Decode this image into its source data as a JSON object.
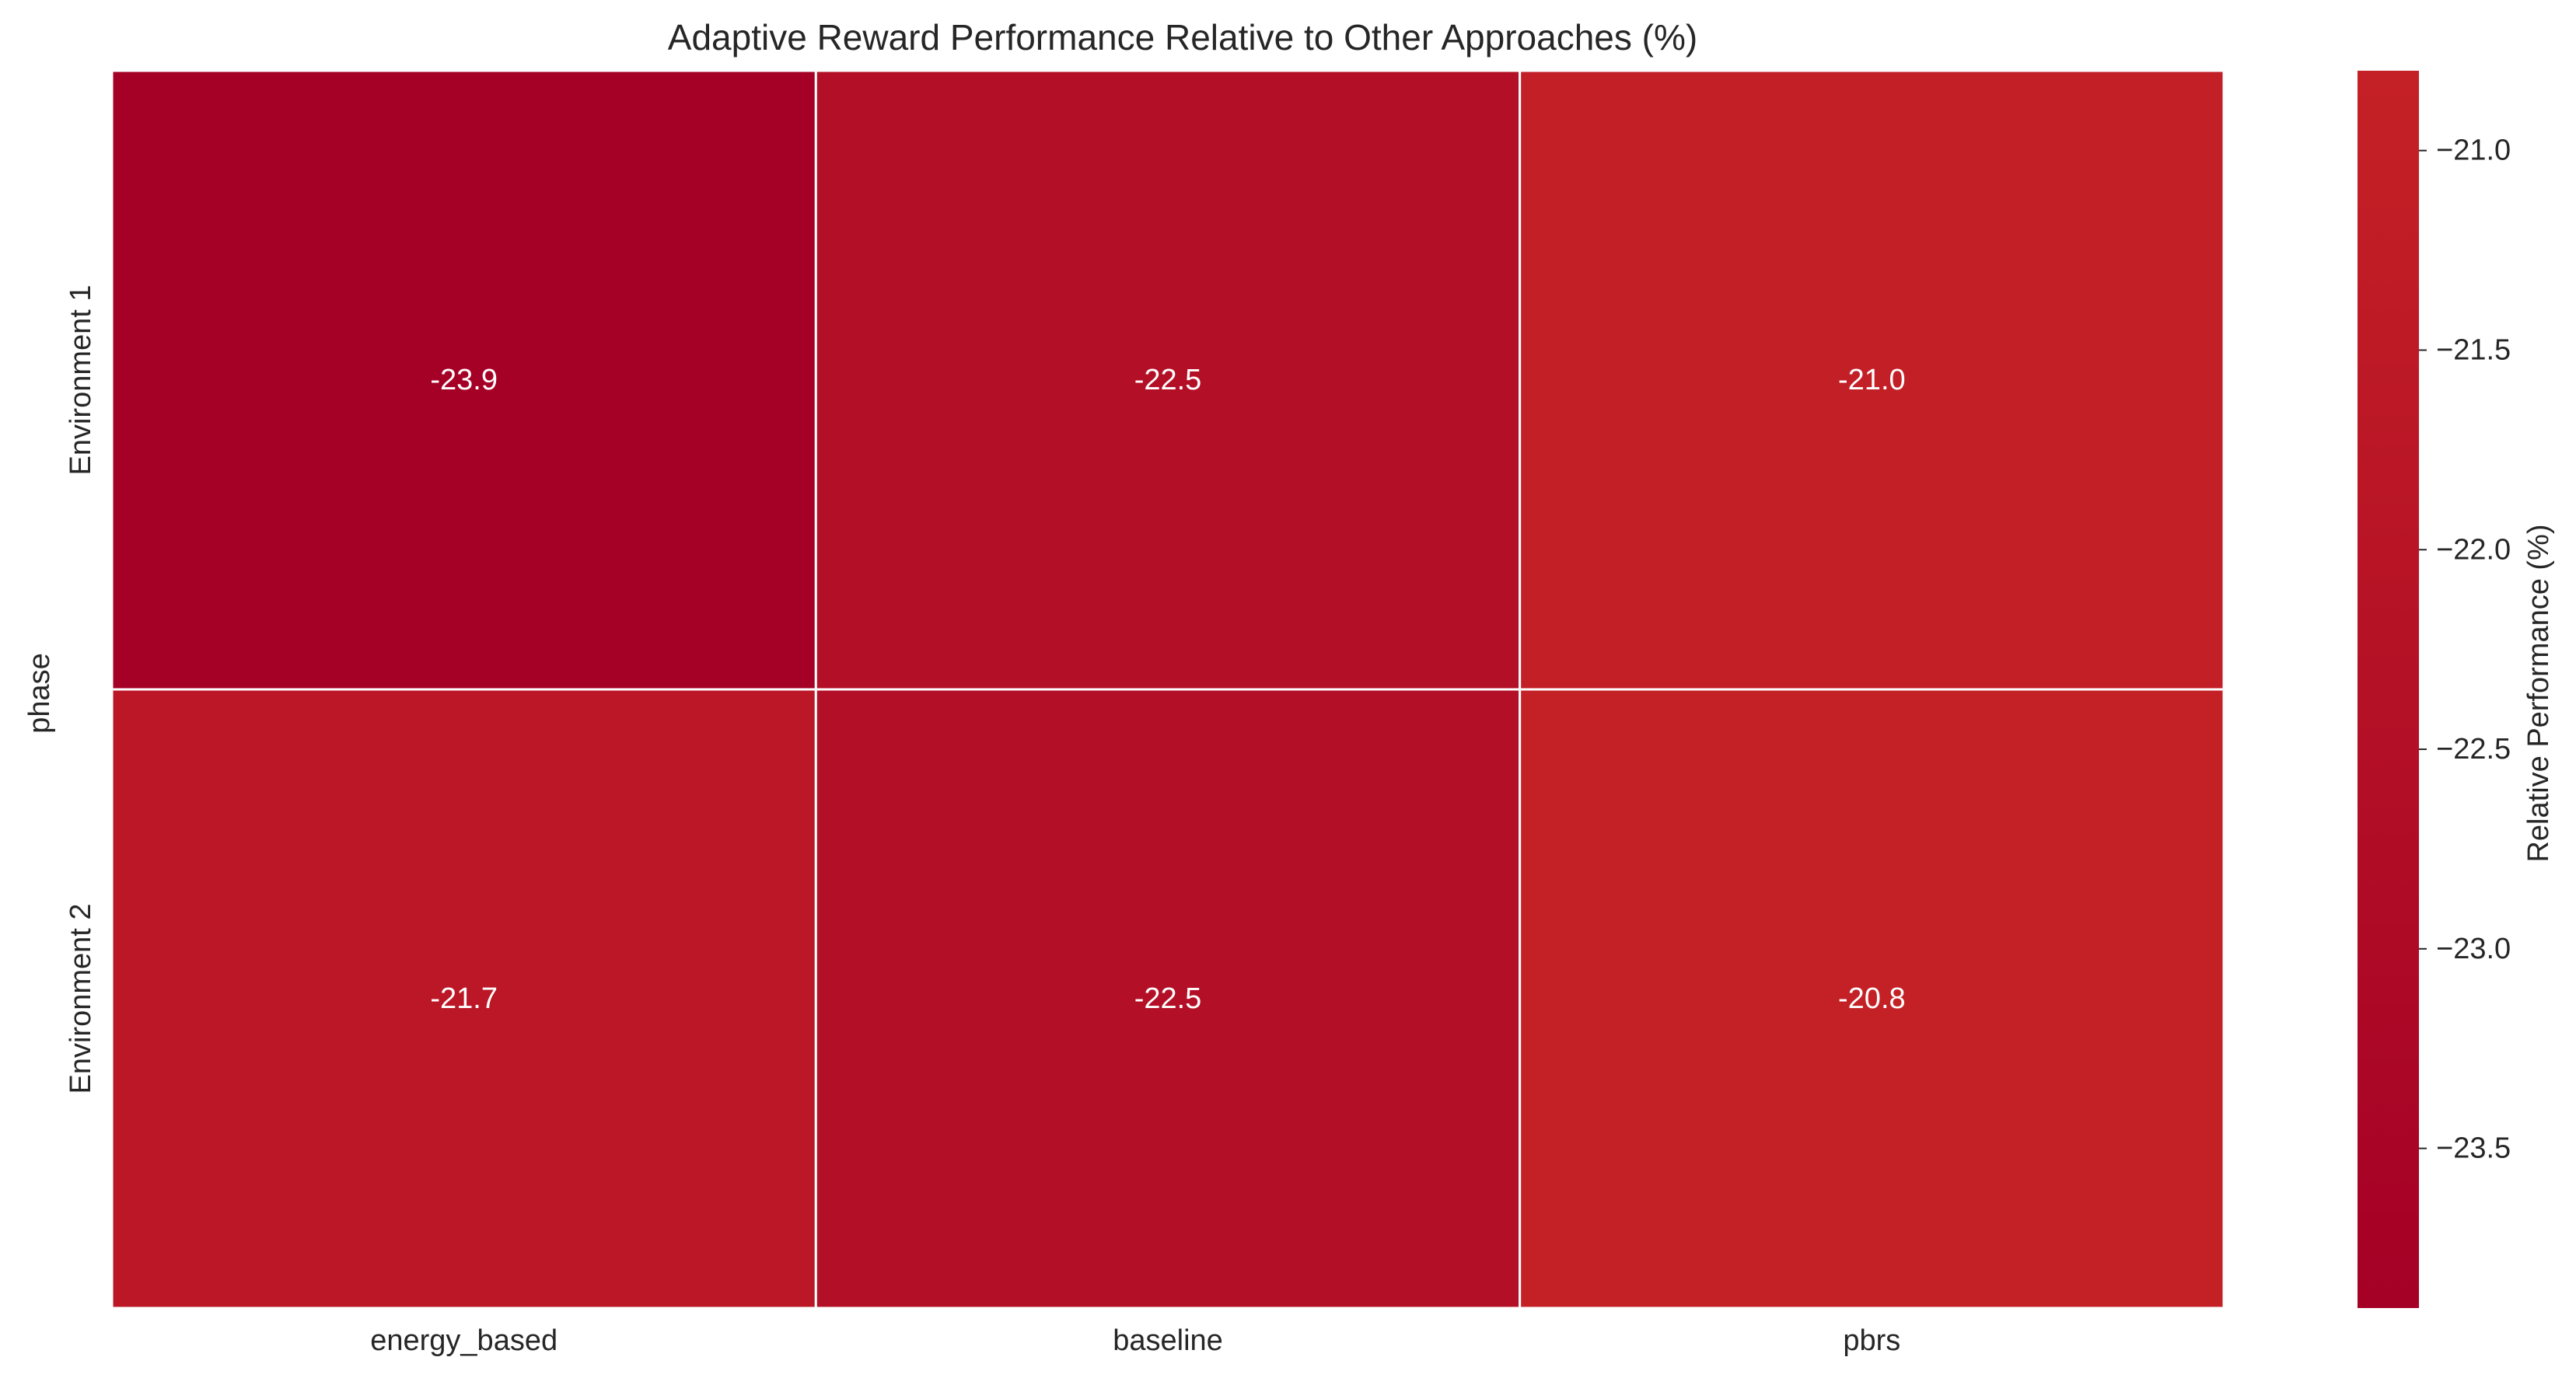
{
  "chart_data": {
    "type": "heatmap",
    "title": "Adaptive Reward Performance Relative to Other Approaches (%)",
    "xlabel": "",
    "ylabel": "phase",
    "x_categories": [
      "energy_based",
      "baseline",
      "pbrs"
    ],
    "y_categories": [
      "Environment 1",
      "Environment 2"
    ],
    "values": [
      [
        -23.9,
        -22.5,
        -21.0
      ],
      [
        -21.7,
        -22.5,
        -20.8
      ]
    ],
    "value_labels": [
      [
        "-23.9",
        "-22.5",
        "-21.0"
      ],
      [
        "-21.7",
        "-22.5",
        "-20.8"
      ]
    ],
    "colorbar": {
      "label": "Relative Performance (%)",
      "vmin": -23.9,
      "vmax": -20.8,
      "ticks": [
        -21.0,
        -21.5,
        -22.0,
        -22.5,
        -23.0,
        -23.5
      ],
      "tick_labels": [
        "−21.0",
        "−21.5",
        "−22.0",
        "−22.5",
        "−23.0",
        "−23.5"
      ],
      "color_min": "#a50026",
      "color_max": "#c42126"
    },
    "cell_text_color": "#ffffff",
    "grid_line_color": "#ffffff"
  }
}
